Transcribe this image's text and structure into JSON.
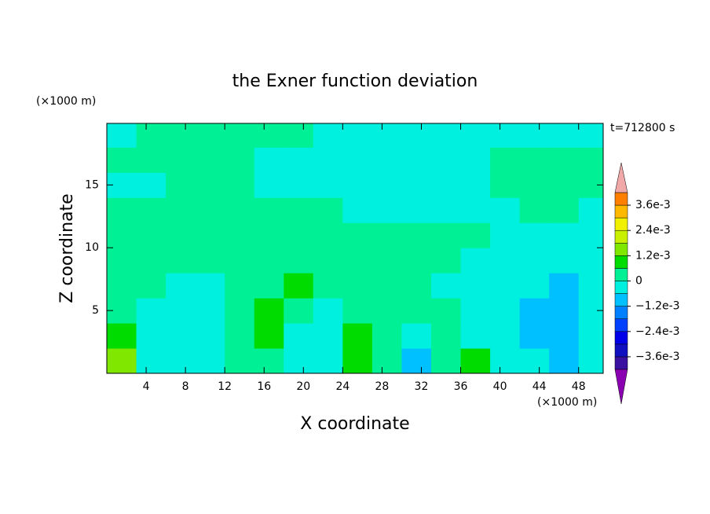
{
  "chart_data": {
    "type": "contour",
    "title": "the Exner function deviation",
    "xlabel": "X coordinate",
    "ylabel": "Z coordinate",
    "xunit": "(×1000 m)",
    "yunit": "(×1000 m)",
    "annotation": "t=712800 s",
    "xlim": [
      0,
      50.5
    ],
    "ylim": [
      0,
      19.9
    ],
    "xticks": [
      4,
      8,
      12,
      16,
      20,
      24,
      28,
      32,
      36,
      40,
      44,
      48
    ],
    "yticks": [
      5,
      10,
      15
    ],
    "x": [
      1.5,
      4.5,
      7.5,
      10.5,
      13.5,
      16.5,
      19.5,
      22.5,
      25.5,
      28.5,
      31.5,
      34.5,
      37.5,
      40.5,
      43.5,
      46.5,
      49.5
    ],
    "y": [
      1,
      3,
      5,
      7,
      9,
      11,
      13,
      15,
      17,
      19
    ],
    "z": [
      [
        0.0015,
        -0.0003,
        -0.0003,
        -0.0003,
        0.0003,
        0.0003,
        -0.0003,
        -0.0003,
        0.0009,
        0.0003,
        -0.0009,
        0.0003,
        0.0009,
        -0.0003,
        -0.0003,
        -0.0009,
        -0.0003
      ],
      [
        0.0009,
        -0.0003,
        -0.0003,
        -0.0003,
        0.0003,
        0.0009,
        -0.0003,
        -0.0003,
        0.0009,
        0.0003,
        -0.0003,
        0.0003,
        -0.0003,
        -0.0003,
        -0.0009,
        -0.0009,
        -0.0003
      ],
      [
        0.0003,
        -0.0003,
        -0.0003,
        -0.0003,
        0.0003,
        0.0009,
        0.0003,
        -0.0003,
        0.0003,
        0.0003,
        0.0003,
        0.0003,
        -0.0003,
        -0.0003,
        -0.0009,
        -0.0009,
        -0.0003
      ],
      [
        0.0003,
        0.0003,
        -0.0003,
        -0.0003,
        0.0003,
        0.0003,
        0.0009,
        0.0003,
        0.0003,
        0.0003,
        0.0003,
        -0.0003,
        -0.0003,
        -0.0003,
        -0.0003,
        -0.0009,
        -0.0003
      ],
      [
        0.0003,
        0.0003,
        0.0003,
        0.0003,
        0.0003,
        0.0003,
        0.0003,
        0.0003,
        0.0003,
        0.0003,
        0.0003,
        0.0003,
        -0.0003,
        -0.0003,
        -0.0003,
        -0.0003,
        -0.0003
      ],
      [
        0.0003,
        0.0003,
        0.0003,
        0.0003,
        0.0003,
        0.0003,
        0.0003,
        0.0003,
        0.0003,
        0.0003,
        0.0003,
        0.0003,
        0.0003,
        -0.0003,
        -0.0003,
        -0.0003,
        -0.0003
      ],
      [
        0.0003,
        0.0003,
        0.0003,
        0.0003,
        0.0003,
        0.0003,
        0.0003,
        0.0003,
        -0.0003,
        -0.0003,
        -0.0003,
        -0.0003,
        -0.0003,
        -0.0003,
        0.0003,
        0.0003,
        -0.0003
      ],
      [
        -0.0003,
        -0.0003,
        0.0003,
        0.0003,
        0.0003,
        -0.0003,
        -0.0003,
        -0.0003,
        -0.0003,
        -0.0003,
        -0.0003,
        -0.0003,
        -0.0003,
        0.0003,
        0.0003,
        0.0003,
        0.0003
      ],
      [
        0.0003,
        0.0003,
        0.0003,
        0.0003,
        0.0003,
        -0.0003,
        -0.0003,
        -0.0003,
        -0.0003,
        -0.0003,
        -0.0003,
        -0.0003,
        -0.0003,
        0.0003,
        0.0003,
        0.0003,
        0.0003
      ],
      [
        -0.0003,
        0.0003,
        0.0003,
        0.0003,
        0.0003,
        0.0003,
        0.0003,
        -0.0003,
        -0.0003,
        -0.0003,
        -0.0003,
        -0.0003,
        -0.0003,
        -0.0003,
        -0.0003,
        -0.0003,
        -0.0003
      ]
    ],
    "levels": [
      -0.0042,
      -0.0036,
      -0.003,
      -0.0024,
      -0.0018,
      -0.0012,
      -0.0006,
      0,
      0.0006,
      0.0012,
      0.0018,
      0.0024,
      0.003,
      0.0036,
      0.0042
    ],
    "colors": [
      "#8a00b0",
      "#3a10a0",
      "#1010c0",
      "#0000e8",
      "#0040ff",
      "#0080ff",
      "#00c0ff",
      "#00f0e0",
      "#00f096",
      "#00dc00",
      "#80e800",
      "#c8f000",
      "#f0f000",
      "#ffb800",
      "#ff8000",
      "#ff3020",
      "#f0a8a8"
    ],
    "colorbar_ticks": [
      {
        "value": 0.0036,
        "label": "3.6e-3"
      },
      {
        "value": 0.0024,
        "label": "2.4e-3"
      },
      {
        "value": 0.0012,
        "label": "1.2e-3"
      },
      0,
      {
        "value": -0.0012,
        "label": "−1.2e-3"
      },
      {
        "value": -0.0024,
        "label": "−2.4e-3"
      },
      {
        "value": -0.0036,
        "label": "−3.6e-3"
      }
    ]
  }
}
